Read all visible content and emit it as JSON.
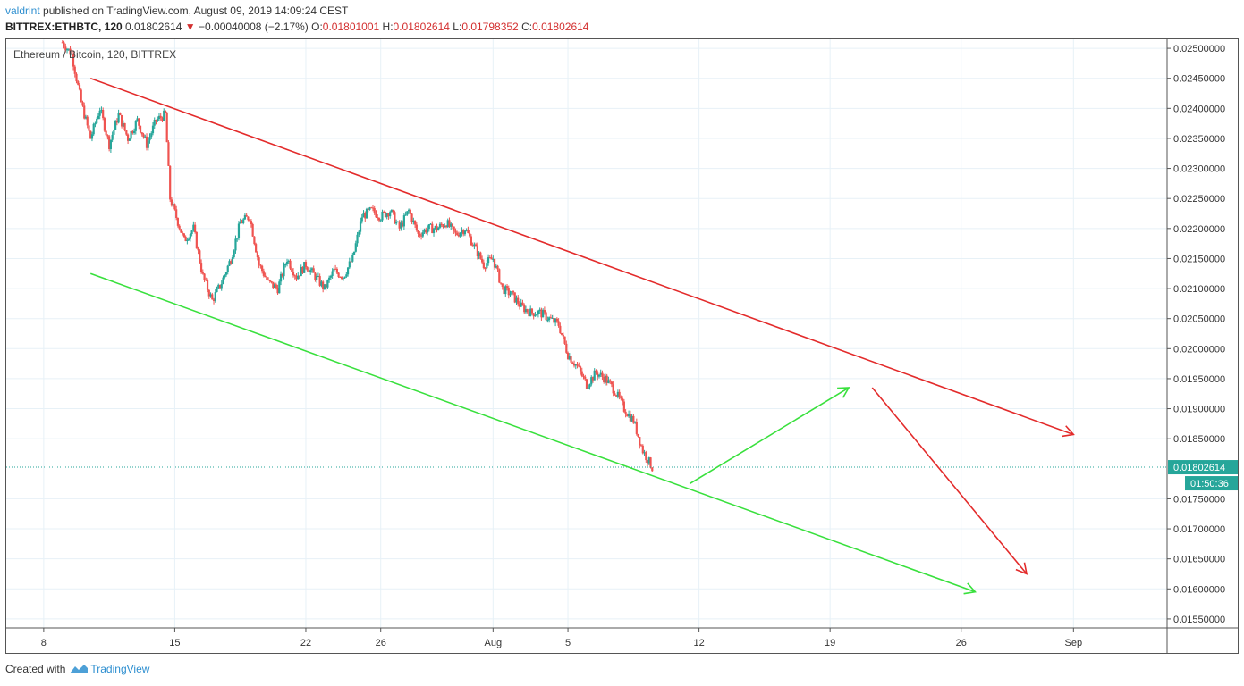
{
  "header": {
    "author": "valdrint",
    "published_text": "published on TradingView.com, August 09, 2019 14:09:24 CEST",
    "symbol": "BITTREX:ETHBTC, 120",
    "last": "0.01802614",
    "change": "−0.00040008 (−2.17%)",
    "o_label": "O:",
    "o": "0.01801001",
    "h_label": "H:",
    "h": "0.01802614",
    "l_label": "L:",
    "l": "0.01798352",
    "c_label": "C:",
    "c": "0.01802614"
  },
  "footer": {
    "created_with": "Created with",
    "brand": "TradingView"
  },
  "colors": {
    "up": "#26a69a",
    "down": "#ef5350",
    "red_line": "#e32b2b",
    "green_line": "#39e03d",
    "price_tag": "#26a69a",
    "grid": "#e7f1f7"
  },
  "chart_data": {
    "type": "candlestick",
    "title": "Ethereum / Bitcoin, 120, BITTREX",
    "xlabel": "",
    "ylabel": "",
    "x_ticks": [
      "8",
      "15",
      "22",
      "26",
      "Aug",
      "5",
      "12",
      "19",
      "26",
      "Sep"
    ],
    "y_ticks": [
      "0.02500000",
      "0.02450000",
      "0.02400000",
      "0.02350000",
      "0.02300000",
      "0.02250000",
      "0.02200000",
      "0.02150000",
      "0.02100000",
      "0.02050000",
      "0.02000000",
      "0.01950000",
      "0.01900000",
      "0.01850000",
      "0.01750000",
      "0.01700000",
      "0.01650000",
      "0.01600000",
      "0.01550000"
    ],
    "ylim": [
      0.01535,
      0.02515
    ],
    "x_range": [
      "2019-07-06",
      "2019-09-06"
    ],
    "last_price": "0.01802614",
    "countdown": "01:50:36",
    "price_path": [
      {
        "date": "2019-07-09T00:00",
        "price": 0.0251
      },
      {
        "date": "2019-07-09T12:00",
        "price": 0.0249
      },
      {
        "date": "2019-07-10T00:00",
        "price": 0.0241
      },
      {
        "date": "2019-07-10T12:00",
        "price": 0.0235
      },
      {
        "date": "2019-07-11T00:00",
        "price": 0.024
      },
      {
        "date": "2019-07-11T12:00",
        "price": 0.0234
      },
      {
        "date": "2019-07-12T00:00",
        "price": 0.0239
      },
      {
        "date": "2019-07-12T12:00",
        "price": 0.0235
      },
      {
        "date": "2019-07-13T00:00",
        "price": 0.0238
      },
      {
        "date": "2019-07-13T12:00",
        "price": 0.0234
      },
      {
        "date": "2019-07-14T00:00",
        "price": 0.0238
      },
      {
        "date": "2019-07-14T12:00",
        "price": 0.0239
      },
      {
        "date": "2019-07-14T18:00",
        "price": 0.0225
      },
      {
        "date": "2019-07-15T12:00",
        "price": 0.0218
      },
      {
        "date": "2019-07-16T00:00",
        "price": 0.022
      },
      {
        "date": "2019-07-16T12:00",
        "price": 0.0212
      },
      {
        "date": "2019-07-17T00:00",
        "price": 0.0208
      },
      {
        "date": "2019-07-17T12:00",
        "price": 0.0211
      },
      {
        "date": "2019-07-18T00:00",
        "price": 0.0215
      },
      {
        "date": "2019-07-18T12:00",
        "price": 0.0221
      },
      {
        "date": "2019-07-19T00:00",
        "price": 0.0222
      },
      {
        "date": "2019-07-19T12:00",
        "price": 0.0214
      },
      {
        "date": "2019-07-20T00:00",
        "price": 0.0211
      },
      {
        "date": "2019-07-20T12:00",
        "price": 0.021
      },
      {
        "date": "2019-07-21T00:00",
        "price": 0.0215
      },
      {
        "date": "2019-07-21T12:00",
        "price": 0.0212
      },
      {
        "date": "2019-07-22T00:00",
        "price": 0.0214
      },
      {
        "date": "2019-07-22T12:00",
        "price": 0.0212
      },
      {
        "date": "2019-07-23T00:00",
        "price": 0.021
      },
      {
        "date": "2019-07-23T12:00",
        "price": 0.0213
      },
      {
        "date": "2019-07-24T00:00",
        "price": 0.0212
      },
      {
        "date": "2019-07-24T12:00",
        "price": 0.0215
      },
      {
        "date": "2019-07-25T00:00",
        "price": 0.0222
      },
      {
        "date": "2019-07-25T12:00",
        "price": 0.0223
      },
      {
        "date": "2019-07-26T00:00",
        "price": 0.0222
      },
      {
        "date": "2019-07-26T12:00",
        "price": 0.0223
      },
      {
        "date": "2019-07-27T00:00",
        "price": 0.022
      },
      {
        "date": "2019-07-27T12:00",
        "price": 0.0223
      },
      {
        "date": "2019-07-28T00:00",
        "price": 0.0219
      },
      {
        "date": "2019-07-28T12:00",
        "price": 0.022
      },
      {
        "date": "2019-07-29T00:00",
        "price": 0.022
      },
      {
        "date": "2019-07-29T12:00",
        "price": 0.0221
      },
      {
        "date": "2019-07-30T00:00",
        "price": 0.0219
      },
      {
        "date": "2019-07-30T12:00",
        "price": 0.022
      },
      {
        "date": "2019-07-31T00:00",
        "price": 0.0217
      },
      {
        "date": "2019-07-31T12:00",
        "price": 0.0214
      },
      {
        "date": "2019-08-01T00:00",
        "price": 0.0215
      },
      {
        "date": "2019-08-01T12:00",
        "price": 0.021
      },
      {
        "date": "2019-08-02T00:00",
        "price": 0.0209
      },
      {
        "date": "2019-08-02T12:00",
        "price": 0.0207
      },
      {
        "date": "2019-08-03T00:00",
        "price": 0.0206
      },
      {
        "date": "2019-08-03T12:00",
        "price": 0.0206
      },
      {
        "date": "2019-08-04T00:00",
        "price": 0.0205
      },
      {
        "date": "2019-08-04T12:00",
        "price": 0.0204
      },
      {
        "date": "2019-08-05T00:00",
        "price": 0.0199
      },
      {
        "date": "2019-08-05T12:00",
        "price": 0.0197
      },
      {
        "date": "2019-08-06T00:00",
        "price": 0.0194
      },
      {
        "date": "2019-08-06T12:00",
        "price": 0.0196
      },
      {
        "date": "2019-08-07T00:00",
        "price": 0.0195
      },
      {
        "date": "2019-08-07T12:00",
        "price": 0.0193
      },
      {
        "date": "2019-08-08T00:00",
        "price": 0.019
      },
      {
        "date": "2019-08-08T12:00",
        "price": 0.0188
      },
      {
        "date": "2019-08-09T00:00",
        "price": 0.0183
      },
      {
        "date": "2019-08-09T12:00",
        "price": 0.01802
      }
    ],
    "overlays": [
      {
        "name": "",
        "color": "#e32b2b",
        "start": {
          "date": "2019-07-10T12:00",
          "price": 0.0245
        },
        "end": {
          "date": "2019-09-01T00:00",
          "price": 0.01857
        }
      },
      {
        "name": "",
        "color": "#39e03d",
        "start": {
          "date": "2019-07-10T12:00",
          "price": 0.02125
        },
        "end": {
          "date": "2019-08-26T18:00",
          "price": 0.01595
        }
      },
      {
        "name": "",
        "color": "#39e03d",
        "start": {
          "date": "2019-08-11T12:00",
          "price": 0.01775
        },
        "end": {
          "date": "2019-08-20T00:00",
          "price": 0.01935
        }
      },
      {
        "name": "",
        "color": "#e32b2b",
        "start": {
          "date": "2019-08-21T06:00",
          "price": 0.01935
        },
        "end": {
          "date": "2019-08-29T12:00",
          "price": 0.01625
        }
      }
    ]
  }
}
